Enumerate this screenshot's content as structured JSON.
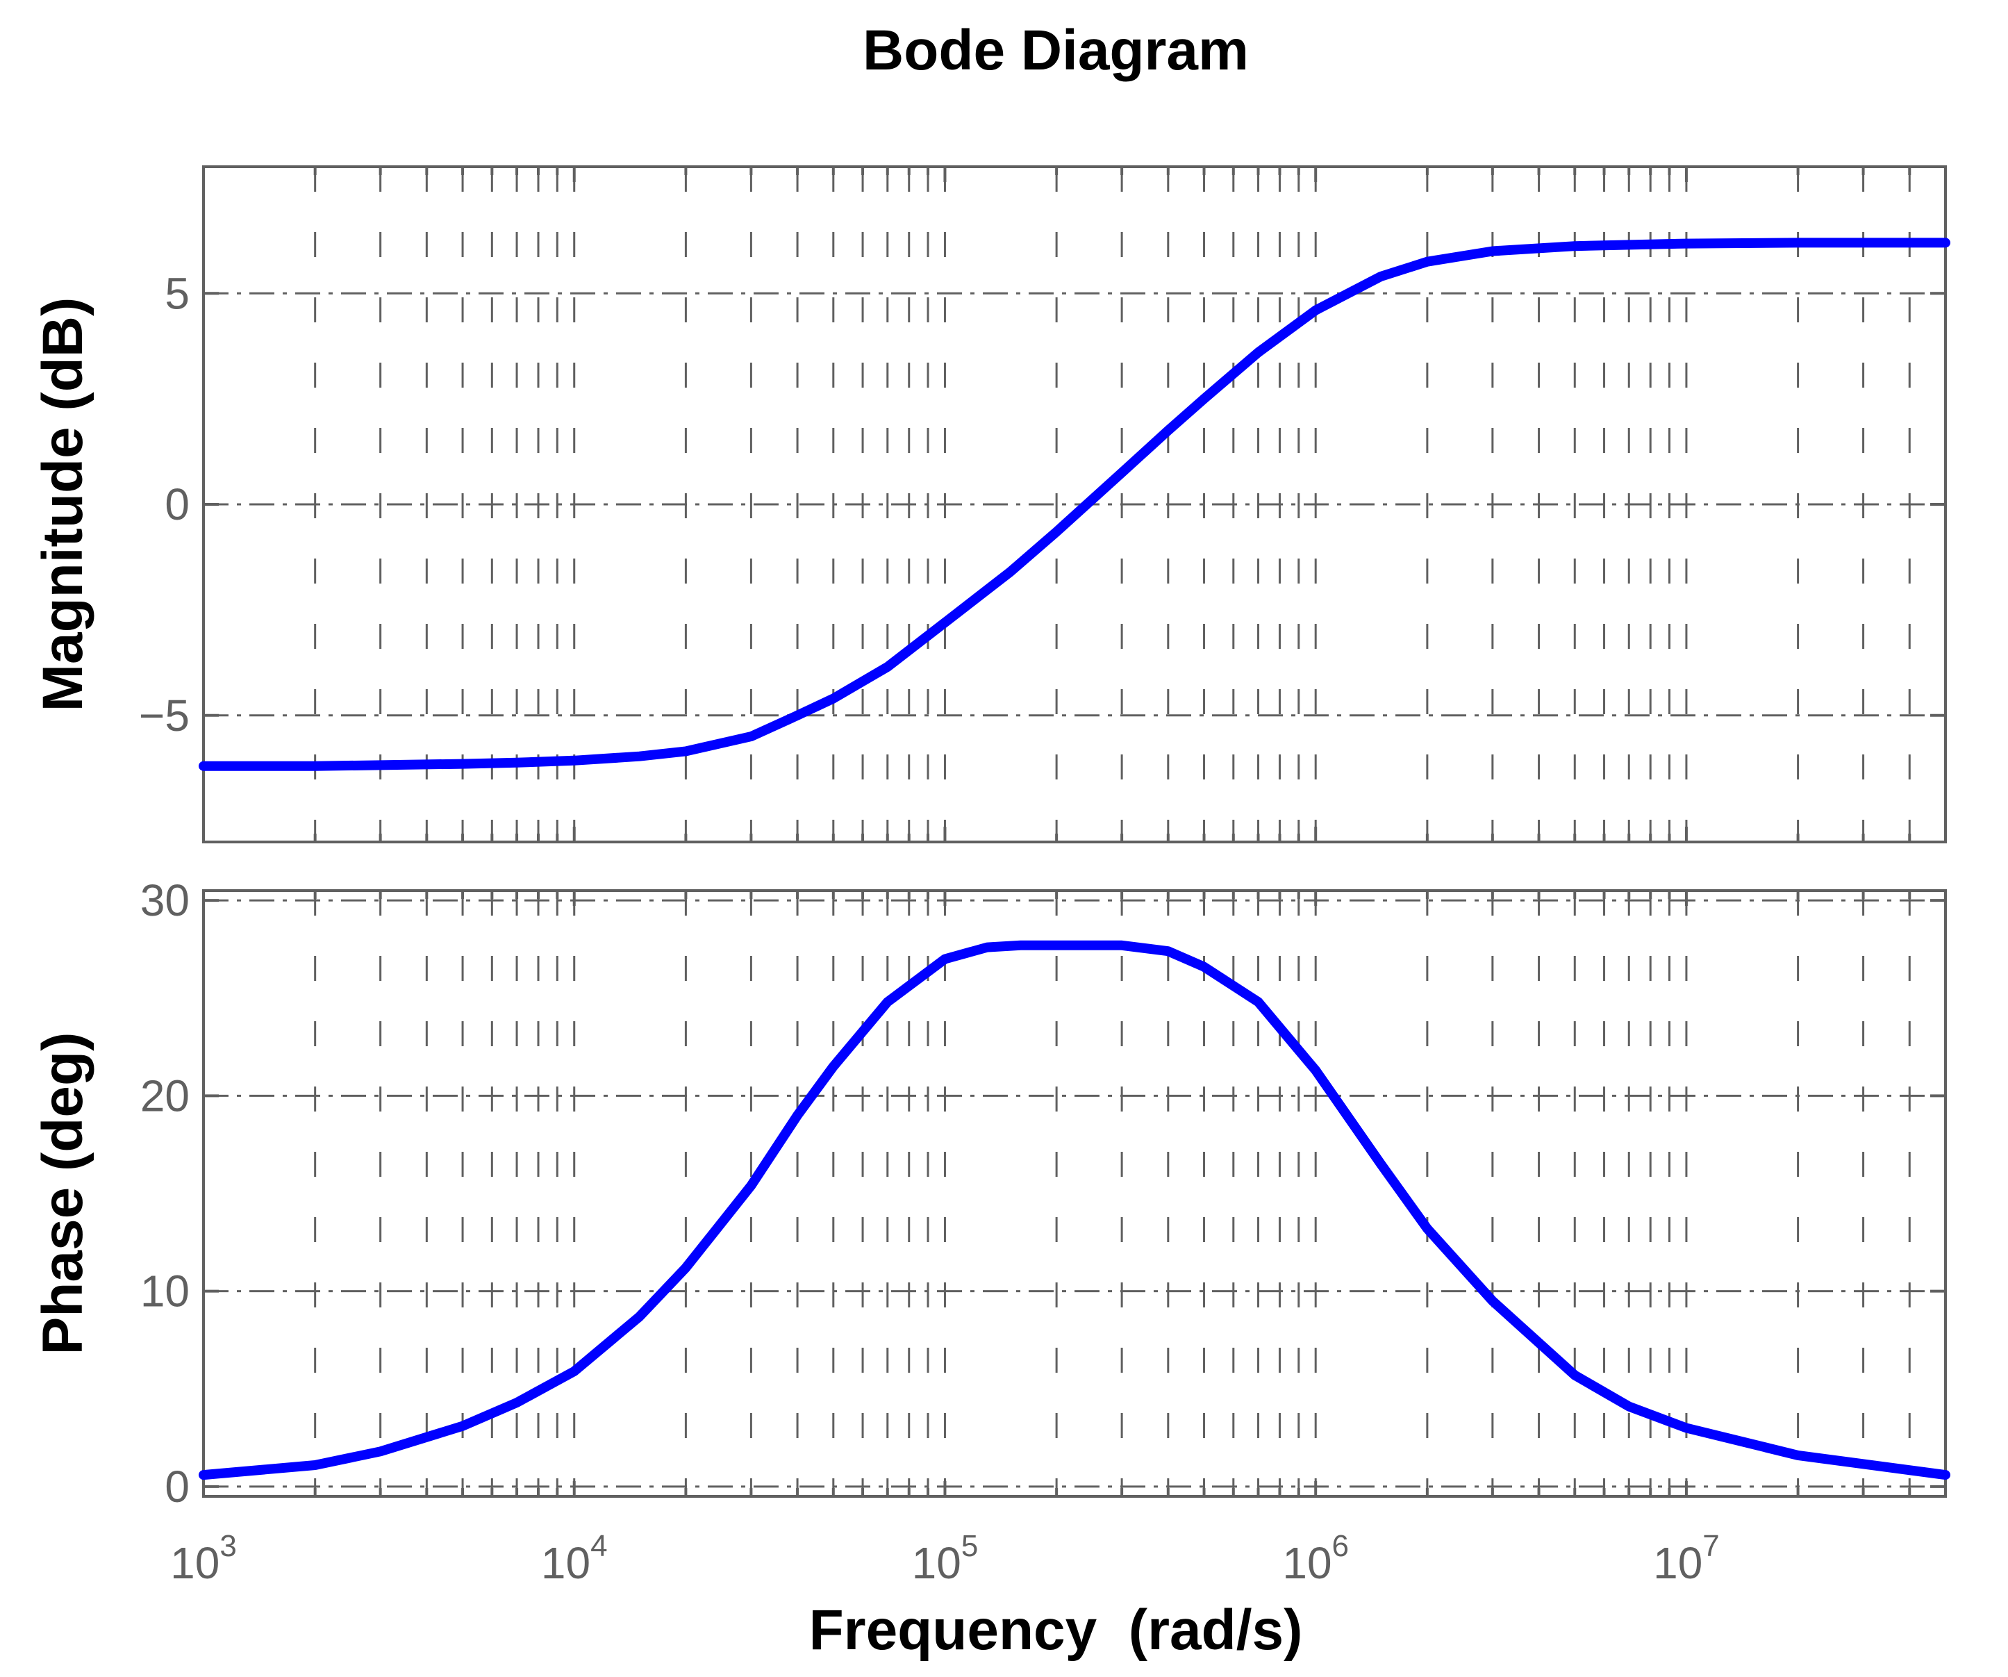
{
  "title": "Bode Diagram",
  "colors": {
    "curve": "#0000ff",
    "grid": "#606060",
    "frame": "#606060"
  },
  "chart_data": [
    {
      "type": "line",
      "panel": "magnitude",
      "ylabel": "Magnitude (dB)",
      "xlabel": "Frequency  (rad/s)",
      "xscale": "log",
      "xlim": [
        1000,
        50000000
      ],
      "ylim": [
        -8,
        8
      ],
      "yticks": [
        -5,
        0,
        5
      ],
      "ytick_labels": [
        "−5",
        "0",
        "5"
      ],
      "grid": true,
      "series": [
        {
          "x": [
            1000,
            2000,
            3000,
            5000,
            7000,
            10000,
            15000,
            20000,
            30000,
            40000,
            50000,
            70000,
            100000,
            150000,
            200000,
            300000,
            400000,
            500000,
            700000,
            1000000,
            1500000,
            2000000,
            3000000,
            5000000,
            10000000,
            20000000,
            50000000
          ],
          "y": [
            -6.2,
            -6.2,
            -6.18,
            -6.15,
            -6.12,
            -6.07,
            -5.97,
            -5.85,
            -5.5,
            -5.0,
            -4.6,
            -3.85,
            -2.8,
            -1.6,
            -0.65,
            0.75,
            1.75,
            2.5,
            3.6,
            4.6,
            5.4,
            5.75,
            6.0,
            6.12,
            6.18,
            6.2,
            6.2
          ]
        }
      ]
    },
    {
      "type": "line",
      "panel": "phase",
      "ylabel": "Phase (deg)",
      "xlabel": "Frequency  (rad/s)",
      "xscale": "log",
      "xlim": [
        1000,
        50000000
      ],
      "ylim": [
        -0.5,
        30.5
      ],
      "yticks": [
        0,
        10,
        20,
        30
      ],
      "ytick_labels": [
        "0",
        "10",
        "20",
        "30"
      ],
      "xtick_base": "10",
      "xtick_exponents": [
        "3",
        "4",
        "5",
        "6",
        "7"
      ],
      "grid": true,
      "series": [
        {
          "x": [
            1000,
            2000,
            3000,
            5000,
            7000,
            10000,
            15000,
            20000,
            30000,
            40000,
            50000,
            70000,
            100000,
            130000,
            160000,
            200000,
            250000,
            300000,
            400000,
            500000,
            700000,
            1000000,
            1500000,
            2000000,
            3000000,
            5000000,
            7000000,
            10000000,
            20000000,
            50000000
          ],
          "y": [
            0.6,
            1.1,
            1.8,
            3.1,
            4.3,
            5.9,
            8.7,
            11.2,
            15.4,
            19.0,
            21.5,
            24.8,
            27.0,
            27.6,
            27.7,
            27.7,
            27.7,
            27.7,
            27.4,
            26.6,
            24.8,
            21.3,
            16.5,
            13.2,
            9.5,
            5.7,
            4.1,
            3.0,
            1.6,
            0.6
          ]
        }
      ]
    }
  ]
}
